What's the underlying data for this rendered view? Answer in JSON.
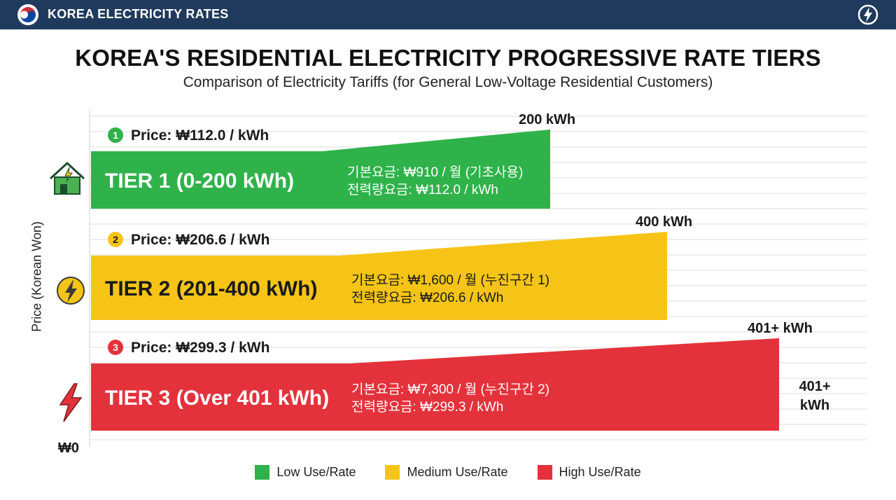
{
  "header": {
    "brand": "KOREA ELECTRICITY RATES",
    "logo_icon": "taegeuk-icon",
    "action_icon": "lightning-circle-icon"
  },
  "chart_data": {
    "type": "bar",
    "title": "KOREA'S RESIDENTIAL ELECTRICITY PROGRESSIVE RATE TIERS",
    "subtitle": "Comparison of Electricity Tariffs (for General Low-Voltage Residential Customers)",
    "ylabel": "Price (Korean Won)",
    "y_origin_label": "₩0",
    "grid": true,
    "legend_position": "bottom",
    "series": [
      {
        "num": "1",
        "tier_label": "TIER 1 (0-200 kWh)",
        "price_label": "Price: ₩112.0 / kWh",
        "price_per_kwh": 112.0,
        "base_line": "기본요금: ₩910 / 월 (기초사용)",
        "energy_line": "전력량요금: ₩112.0 / kWh",
        "base_fee": 910,
        "end_label": "200 kWh",
        "max_kwh": 200,
        "color": "#2fb24a",
        "icon": "house-icon"
      },
      {
        "num": "2",
        "tier_label": "TIER 2 (201-400 kWh)",
        "price_label": "Price: ₩206.6 / kWh",
        "price_per_kwh": 206.6,
        "base_line": "기본요금: ₩1,600 / 월 (누진구간 1)",
        "energy_line": "전력량요금: ₩206.6 / kWh",
        "base_fee": 1600,
        "end_label": "400 kWh",
        "max_kwh": 400,
        "color": "#f5c417",
        "icon": "lightning-circle-icon"
      },
      {
        "num": "3",
        "tier_label": "TIER 3 (Over 401 kWh)",
        "price_label": "Price: ₩299.3 / kWh",
        "price_per_kwh": 299.3,
        "base_line": "기본요금: ₩7,300 / 월 (누진구간 2)",
        "energy_line": "전력량요금: ₩299.3 / kWh",
        "base_fee": 7300,
        "end_label": "401+ kWh",
        "max_kwh": 600,
        "color": "#e3323b",
        "icon": "lightning-bolt-icon"
      }
    ],
    "side_label_lines": [
      "401+",
      "kWh"
    ],
    "legend": [
      {
        "label": "Low Use/Rate",
        "color": "#2fb24a"
      },
      {
        "label": "Medium Use/Rate",
        "color": "#f5c417"
      },
      {
        "label": "High Use/Rate",
        "color": "#e3323b"
      }
    ]
  }
}
